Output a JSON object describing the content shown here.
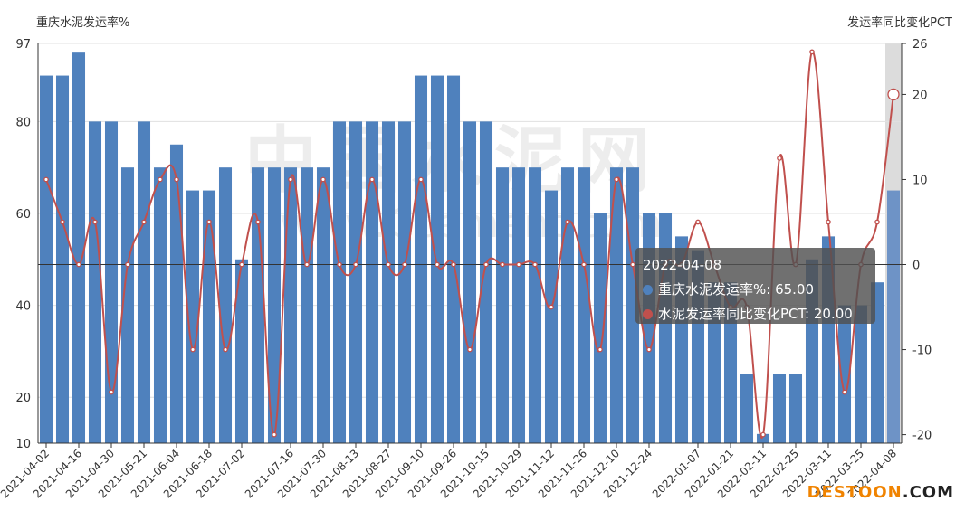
{
  "chart_data": {
    "type": "bar",
    "left_axis_title": "重庆水泥发运率%",
    "right_axis_title": "发运率同比变化PCT",
    "ylim_left": [
      10,
      97
    ],
    "ylim_right": [
      -21,
      26
    ],
    "left_ticks": [
      97,
      80,
      60,
      40,
      20,
      10
    ],
    "right_ticks": [
      26,
      20,
      10,
      0,
      -10,
      -20
    ],
    "grid": true,
    "x_tick_labels": [
      "2021-04-02",
      "2021-04-16",
      "2021-04-30",
      "2021-05-21",
      "2021-06-04",
      "2021-06-18",
      "2021-07-02",
      "2021-07-16",
      "2021-07-30",
      "2021-08-13",
      "2021-08-27",
      "2021-09-10",
      "2021-09-26",
      "2021-10-15",
      "2021-10-29",
      "2021-11-12",
      "2021-11-26",
      "2021-12-10",
      "2021-12-24",
      "2022-01-07",
      "2022-01-21",
      "2022-02-11",
      "2022-02-25",
      "2022-03-11",
      "2022-03-25",
      "2022-04-08"
    ],
    "bar_series": {
      "name": "重庆水泥发运率%",
      "color": "#4f81bd",
      "values": [
        90,
        90,
        95,
        80,
        80,
        70,
        80,
        70,
        75,
        65,
        65,
        70,
        50,
        70,
        70,
        70,
        70,
        70,
        80,
        80,
        80,
        80,
        80,
        90,
        90,
        90,
        80,
        80,
        70,
        70,
        70,
        65,
        70,
        70,
        60,
        70,
        70,
        60,
        60,
        55,
        52,
        45,
        45,
        25,
        12,
        25,
        25,
        50,
        55,
        40,
        40,
        45,
        65
      ]
    },
    "line_series": {
      "name": "水泥发运率同比变化PCT",
      "color": "#c0504d",
      "values": [
        10,
        5,
        0,
        5,
        -15,
        0,
        5,
        10,
        10,
        -10,
        5,
        -10,
        0,
        5,
        -20,
        10,
        0,
        10,
        0,
        0,
        10,
        0,
        0,
        10,
        0,
        0,
        -10,
        0,
        0,
        0,
        0,
        -5,
        5,
        0,
        -10,
        10,
        0,
        -10,
        0,
        0,
        5,
        0,
        -5,
        -5,
        -20,
        12.5,
        0,
        25,
        5,
        -15,
        0,
        5,
        20
      ]
    },
    "highlight_index": 52,
    "tooltip": {
      "date": "2022-04-08",
      "bar_text": "重庆水泥发运率%: 65.00",
      "line_text": "水泥发运率同比变化PCT: 20.00"
    }
  },
  "watermark": {
    "center_text": "中国水泥网",
    "url_text": "www.Ccement.com",
    "site_part1": "DESTOON",
    "site_part2": ".COM",
    "site_color1": "#f08300",
    "site_color2": "#222222"
  }
}
